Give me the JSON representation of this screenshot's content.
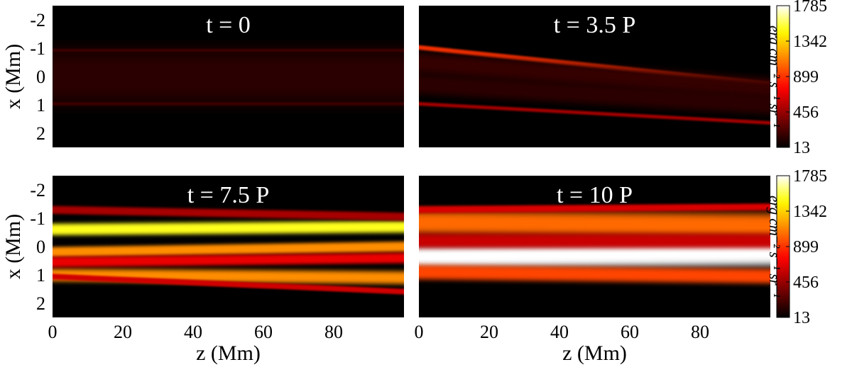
{
  "chart_data": {
    "type": "heatmap",
    "colormap": "black-red-yellow-white (hot)",
    "colorbar": {
      "label": "erg cm⁻² s⁻¹ sr⁻¹",
      "ticks": [
        13,
        456,
        899,
        1342,
        1785
      ],
      "range": [
        13,
        1785
      ]
    },
    "xaxis": {
      "label": "z (Mm)",
      "ticks": [
        0,
        20,
        40,
        60,
        80
      ],
      "range": [
        0,
        100
      ]
    },
    "yaxis": {
      "label": "x (Mm)",
      "ticks": [
        -2,
        -1,
        0,
        1,
        2
      ],
      "range": [
        -2.5,
        2.5
      ],
      "inverted": true
    },
    "panels": [
      {
        "title": "t = 0",
        "background": 13,
        "strands": [
          {
            "x0": -0.92,
            "x1": -0.92,
            "width": 0.05,
            "intensity": 260
          },
          {
            "x0": 0.96,
            "x1": 0.96,
            "width": 0.05,
            "intensity": 260
          },
          {
            "x0": 0.0,
            "x1": 0.0,
            "width": 0.9,
            "intensity": 140
          }
        ]
      },
      {
        "title": "t = 3.5 P",
        "background": 13,
        "strands": [
          {
            "x0": -1.05,
            "x1": 0.3,
            "width": 0.08,
            "intensity": 900
          },
          {
            "x0": 0.95,
            "x1": 1.65,
            "width": 0.06,
            "intensity": 500
          },
          {
            "x0": -0.5,
            "x1": 0.45,
            "width": 0.35,
            "intensity": 170
          },
          {
            "x0": 0.25,
            "x1": 1.0,
            "width": 0.35,
            "intensity": 140
          }
        ]
      },
      {
        "title": "t = 7.5 P",
        "background": 13,
        "strands": [
          {
            "x0": -0.6,
            "x1": -0.7,
            "width": 0.2,
            "intensity": 1500
          },
          {
            "x0": 0.2,
            "x1": 0.0,
            "width": 0.18,
            "intensity": 1150
          },
          {
            "x0": 1.0,
            "x1": 1.1,
            "width": 0.22,
            "intensity": 1150
          },
          {
            "x0": -1.3,
            "x1": -1.05,
            "width": 0.14,
            "intensity": 500
          },
          {
            "x0": 0.55,
            "x1": 0.4,
            "width": 0.18,
            "intensity": 700
          },
          {
            "x0": 1.05,
            "x1": 1.6,
            "width": 0.1,
            "intensity": 620
          }
        ]
      },
      {
        "title": "t = 10 P",
        "background": 13,
        "strands": [
          {
            "x0": 0.35,
            "x1": 0.25,
            "width": 0.4,
            "intensity": 1785
          },
          {
            "x0": -0.85,
            "x1": -0.75,
            "width": 0.4,
            "intensity": 1050
          },
          {
            "x0": -1.3,
            "x1": -1.4,
            "width": 0.12,
            "intensity": 650
          },
          {
            "x0": 0.9,
            "x1": 1.05,
            "width": 0.25,
            "intensity": 950
          },
          {
            "x0": -0.2,
            "x1": -0.2,
            "width": 0.25,
            "intensity": 600
          }
        ]
      }
    ]
  }
}
